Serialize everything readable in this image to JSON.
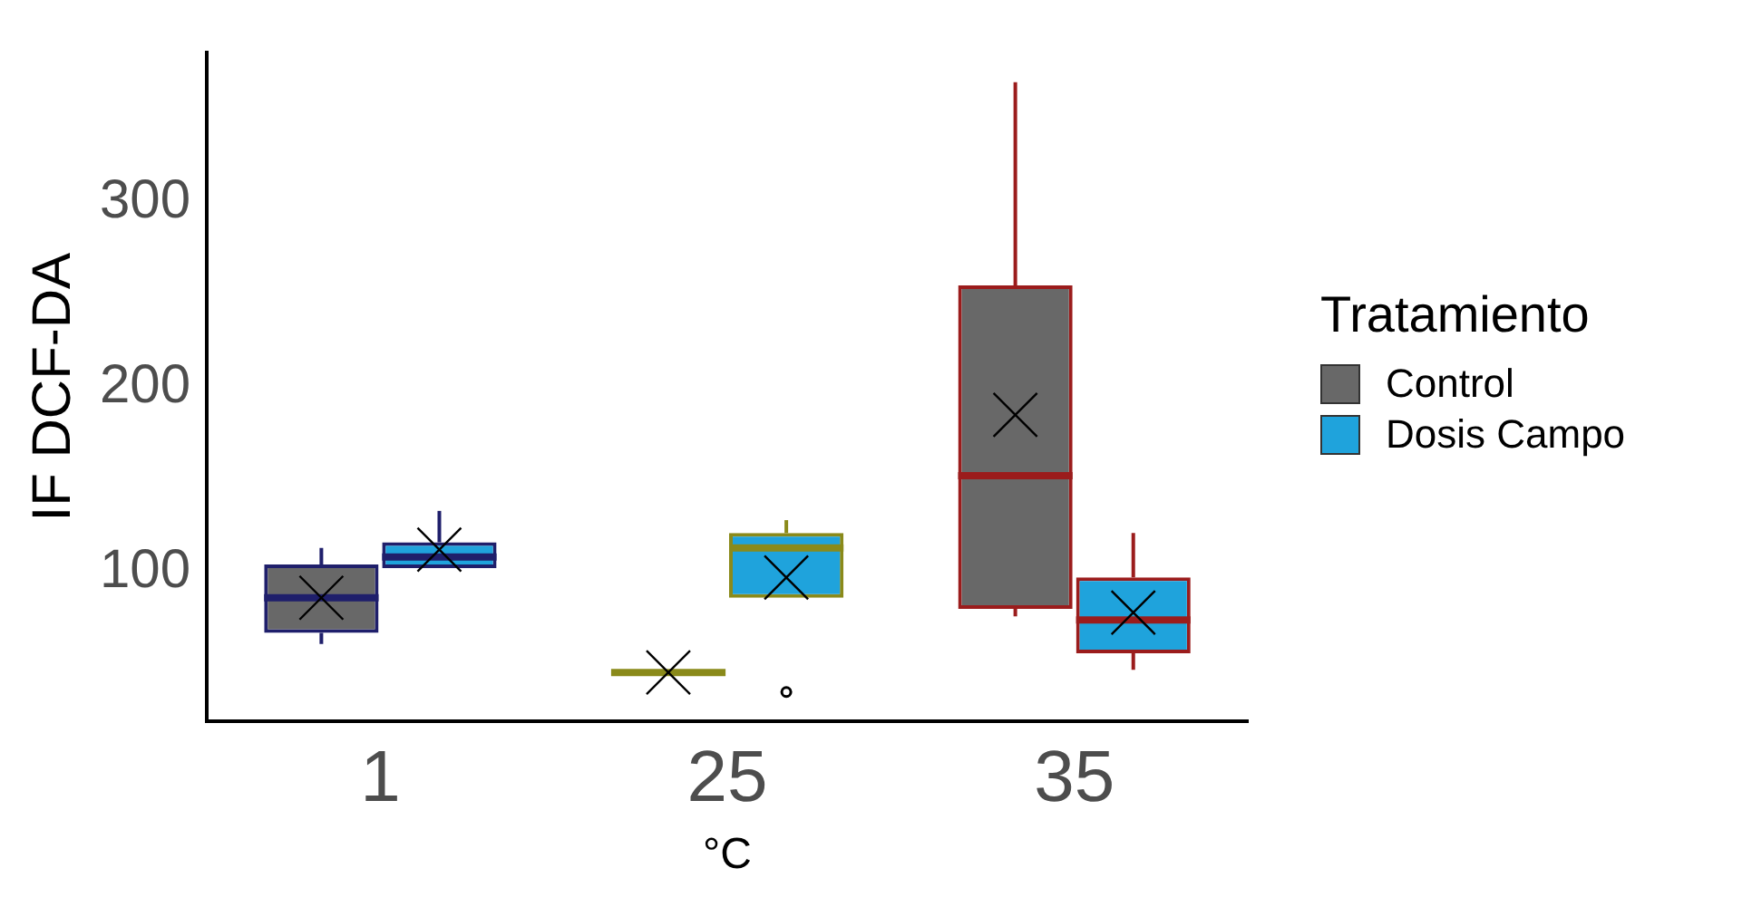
{
  "chart_data": {
    "type": "box",
    "xlabel": "°C",
    "ylabel": "IF DCF-DA",
    "legend_title": "Tratamiento",
    "categories": [
      "1",
      "25",
      "35"
    ],
    "ylim": [
      19,
      381
    ],
    "yticks": [
      100,
      200,
      300
    ],
    "grid": false,
    "legend": "right",
    "series": [
      {
        "name": "Control",
        "color": "#686868",
        "colors": [
          "#1f1f6b",
          "#8a8a1a",
          "#9b1c1c"
        ],
        "boxes": [
          {
            "low": 61,
            "q1": 67,
            "median": 86,
            "q3": 104,
            "high": 113,
            "mean": 86
          },
          {
            "low": 45.6,
            "q1": 45.6,
            "median": 45.6,
            "q3": 45.6,
            "high": 45.6,
            "mean": 45.6
          },
          {
            "low": 76,
            "q1": 80,
            "median": 152,
            "q3": 255,
            "high": 365,
            "mean": 185
          }
        ]
      },
      {
        "name": "Dosis Campo",
        "color": "#1fa3dc",
        "colors": [
          "#1f1f6b",
          "#8a8a1a",
          "#9b1c1c"
        ],
        "boxes": [
          {
            "low": 102,
            "q1": 102,
            "median": 108,
            "q3": 116,
            "high": 133,
            "mean": 112
          },
          {
            "low": 86,
            "q1": 86,
            "median": 113,
            "q3": 121,
            "high": 128,
            "mean": 97,
            "outliers": [
              35
            ]
          },
          {
            "low": 47,
            "q1": 56,
            "median": 74,
            "q3": 97,
            "high": 121,
            "mean": 78
          }
        ]
      }
    ]
  }
}
